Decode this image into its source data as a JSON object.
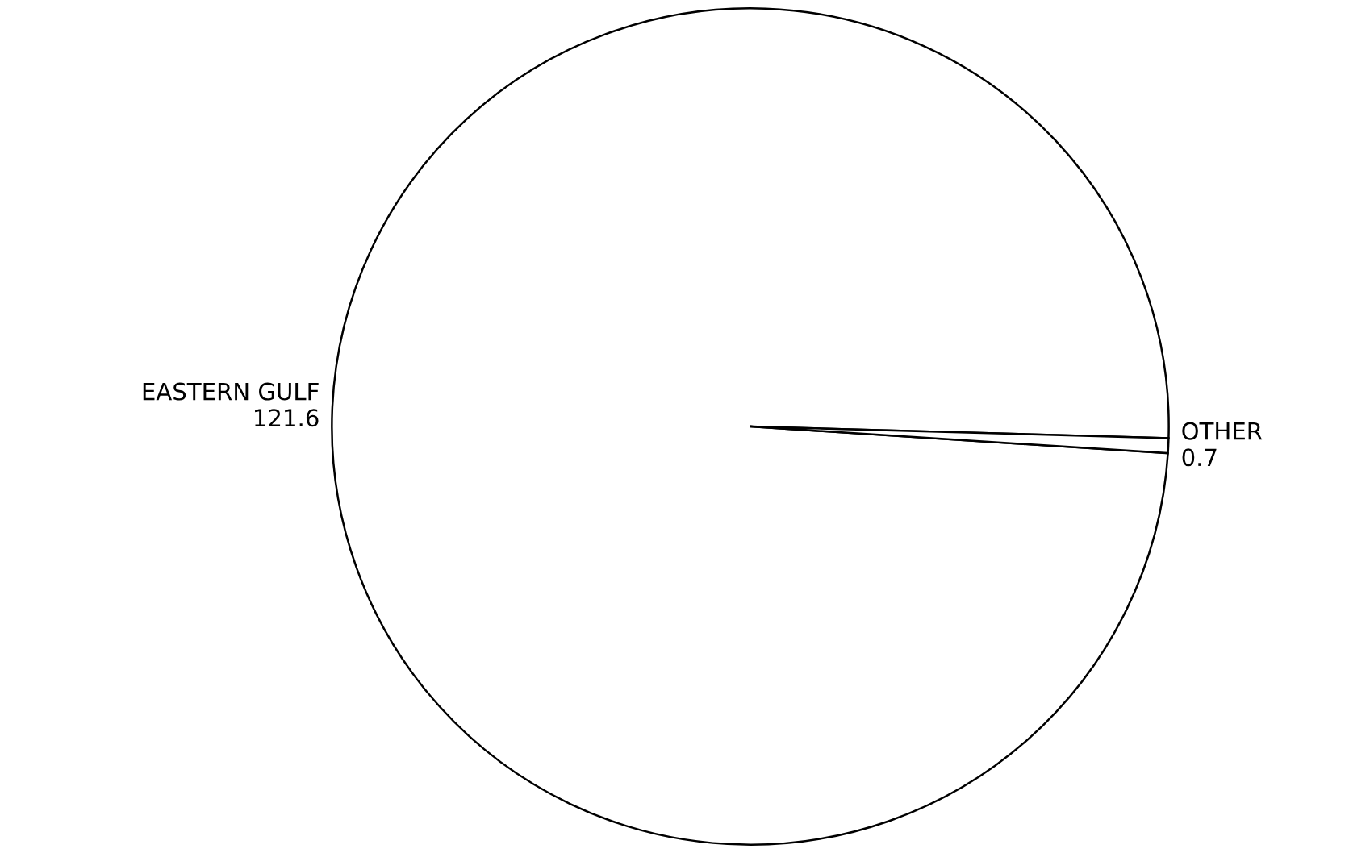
{
  "chart_data": {
    "type": "pie",
    "categories": [
      "EASTERN GULF",
      "OTHER"
    ],
    "values": [
      121.6,
      0.7
    ],
    "colors": [
      "#ffffff",
      "#ffffff"
    ],
    "data_labels": true
  }
}
